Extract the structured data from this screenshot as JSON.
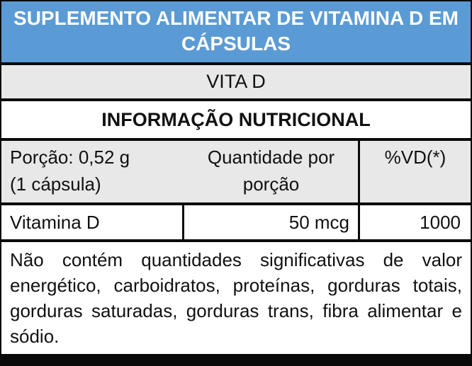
{
  "label": {
    "title": "SUPLEMENTO ALIMENTAR DE VITAMINA D EM CÁPSULAS",
    "brand": "VITA D",
    "section_title": "INFORMAÇÃO NUTRICIONAL",
    "serving": {
      "line1": "Porção: 0,52 g",
      "line2": "(1 cápsula)"
    },
    "columns": {
      "quantity": "Quantidade por porção",
      "daily_value": "%VD(*)"
    },
    "nutrients": [
      {
        "name": "Vitamina D",
        "amount": "50 mcg",
        "dv": "1000"
      }
    ],
    "footnote": "Não contém quantidades significativas de valor energético, carboidratos, proteínas, gorduras totais, gorduras saturadas, gorduras trans, fibra alimentar e sódio.",
    "colors": {
      "header_bg": "#5B9BD5",
      "header_text": "#FFFFFF",
      "gray_row_bg": "#E8E8E8",
      "border": "#0A0A0A"
    }
  }
}
